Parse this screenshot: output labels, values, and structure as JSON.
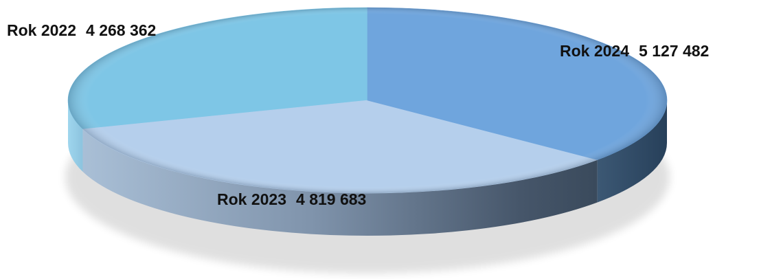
{
  "chart_data": {
    "type": "pie",
    "style": "3d",
    "title": "",
    "categories": [
      "Rok 2022",
      "Rok 2023",
      "Rok 2024"
    ],
    "values": [
      4268362,
      4819683,
      5127482
    ],
    "labels": [
      {
        "category": "Rok 2022",
        "value_text": "4 268 362"
      },
      {
        "category": "Rok 2023",
        "value_text": "4 819 683"
      },
      {
        "category": "Rok 2024",
        "value_text": "5 127 482"
      }
    ],
    "colors": [
      "#7EC6E6",
      "#B5CFEC",
      "#6FA5DD"
    ],
    "side_colors": [
      "#8AC6DD",
      "#8E9FB6",
      "#2E4860"
    ],
    "legend": "none",
    "grid": false
  }
}
